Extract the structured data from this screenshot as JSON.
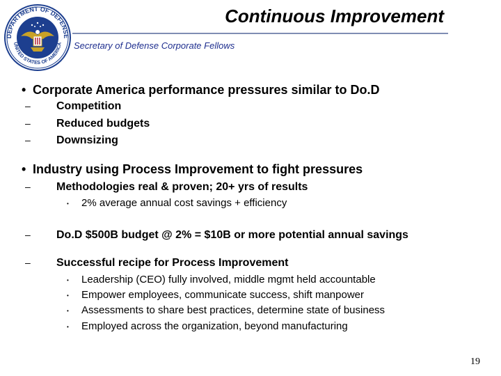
{
  "seal": {
    "ring_text": "DEPARTMENT OF DEFENSE",
    "bottom_text": "UNITED STATES OF AMERICA"
  },
  "header": {
    "title": "Continuous Improvement",
    "subtitle": "Secretary of Defense Corporate Fellows"
  },
  "bullets": {
    "b1": "Corporate America performance pressures similar to Do.D",
    "b1_subs": [
      "Competition",
      "Reduced budgets",
      "Downsizing"
    ],
    "b2": "Industry using Process Improvement to fight pressures",
    "b2_sub1": "Methodologies real & proven; 20+ yrs of results",
    "b2_sub1_items": [
      "2% average annual cost savings + efficiency"
    ],
    "b2_sub2": "Do.D $500B budget @ 2% = $10B or more potential annual savings",
    "b2_sub3": "Successful recipe for Process Improvement",
    "b2_sub3_items": [
      "Leadership (CEO) fully involved, middle mgmt held accountable",
      "Empower employees, communicate success, shift manpower",
      "Assessments to share best practices, determine state of business",
      "Employed across the organization, beyond manufacturing"
    ]
  },
  "markers": {
    "bullet": "•",
    "dash": "–",
    "dot": "•"
  },
  "page_number": "19",
  "colors": {
    "rule": "#7f8db3",
    "subtitle": "#1f2f8f",
    "seal_blue": "#1d3f8f",
    "seal_gold": "#c9a227"
  }
}
